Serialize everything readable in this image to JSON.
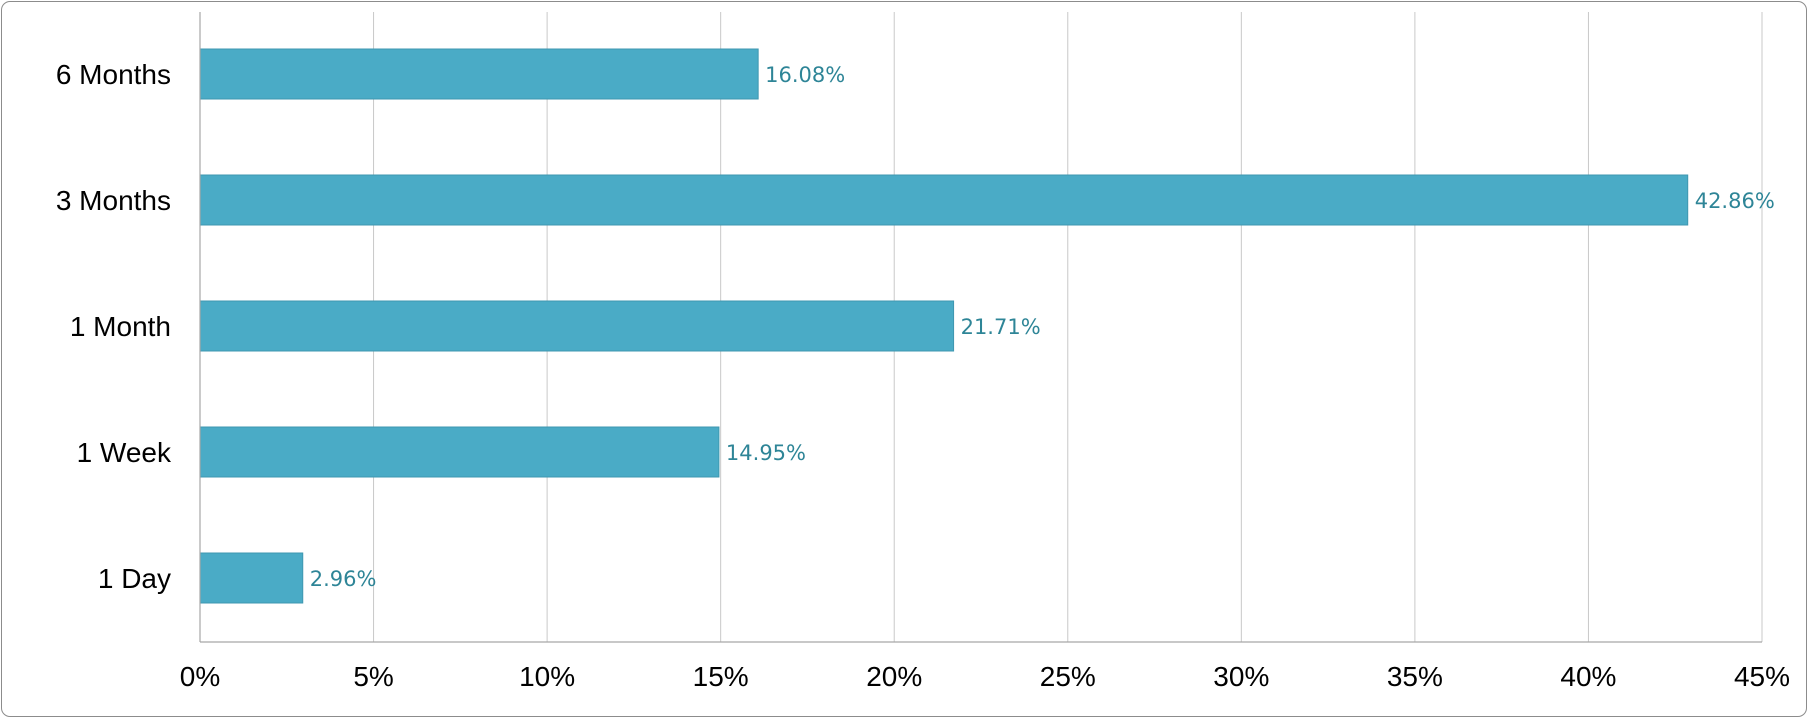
{
  "chart_data": {
    "type": "bar",
    "orientation": "horizontal",
    "categories": [
      "6 Months",
      "3 Months",
      "1 Month",
      "1 Week",
      "1 Day"
    ],
    "values": [
      16.08,
      42.86,
      21.71,
      14.95,
      2.96
    ],
    "data_labels": [
      "16.08%",
      "42.86%",
      "21.71%",
      "14.95%",
      "2.96%"
    ],
    "xlim": [
      0,
      45
    ],
    "xticks": [
      0,
      5,
      10,
      15,
      20,
      25,
      30,
      35,
      40,
      45
    ],
    "xtick_labels": [
      "0%",
      "5%",
      "10%",
      "15%",
      "20%",
      "25%",
      "30%",
      "35%",
      "40%",
      "45%"
    ],
    "title": "",
    "xlabel": "",
    "ylabel": "",
    "grid": "vertical",
    "legend": "none",
    "colors": {
      "bar": "#4aabc6",
      "bar_edge": "#3f97b0",
      "data_label": "#2e8597",
      "grid": "#c8c8c8",
      "axis": "#a6a6a6"
    }
  }
}
